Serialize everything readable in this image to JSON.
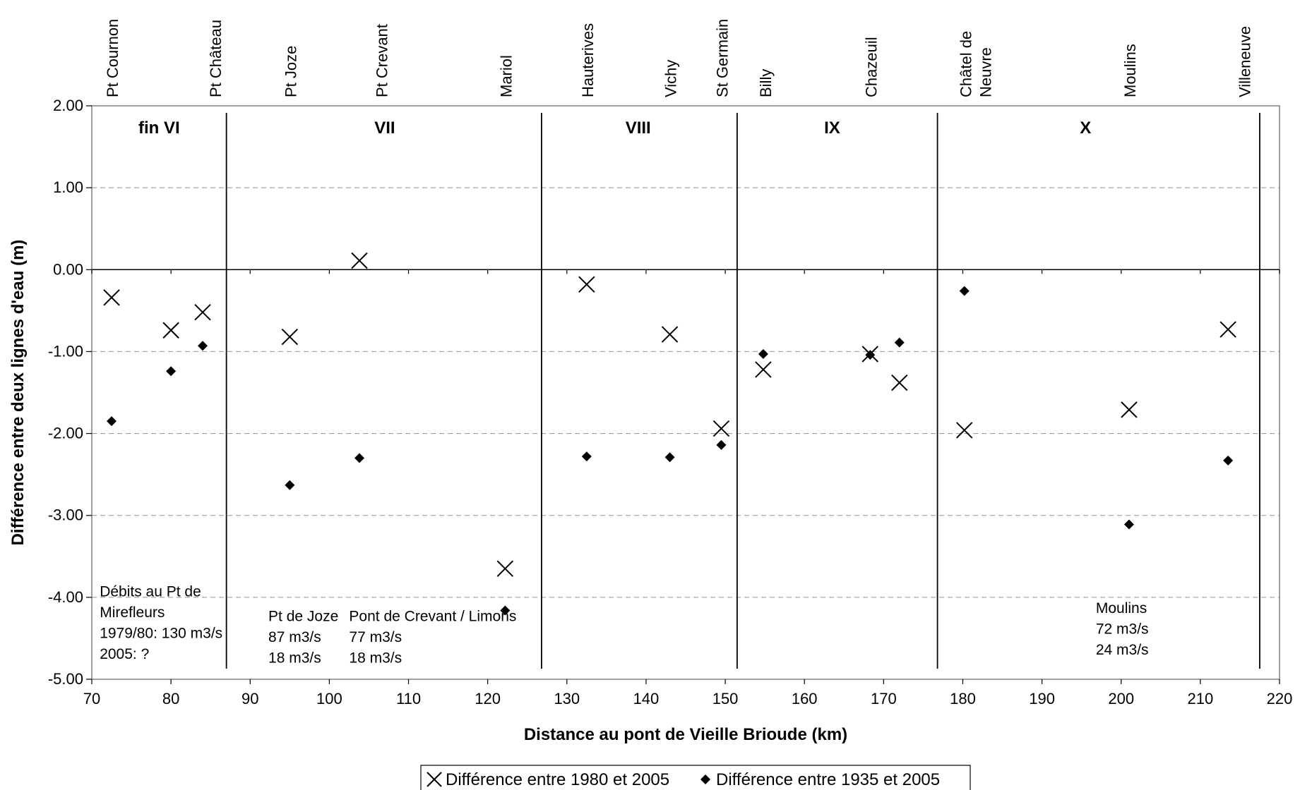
{
  "chart_data": {
    "type": "scatter",
    "xlabel": "Distance au pont de Vieille Brioude (km)",
    "ylabel": "Différence entre deux lignes d'eau (m)",
    "xlim": [
      70,
      220
    ],
    "ylim": [
      -5,
      2
    ],
    "x_ticks": [
      "70",
      "80",
      "90",
      "100",
      "110",
      "120",
      "130",
      "140",
      "150",
      "160",
      "170",
      "180",
      "190",
      "200",
      "210",
      "220"
    ],
    "y_ticks": [
      "2.00",
      "1.00",
      "0.00",
      "-1.00",
      "-2.00",
      "-3.00",
      "-4.00",
      "-5.00"
    ],
    "grid": "horizontal dashed",
    "legend_position": "bottom",
    "series": [
      {
        "name": "Différence entre 1980 et 2005",
        "marker": "x",
        "color": "#000000",
        "points": [
          {
            "x": 72.5,
            "y": -0.34
          },
          {
            "x": 80,
            "y": -0.74
          },
          {
            "x": 84,
            "y": -0.52
          },
          {
            "x": 95,
            "y": -0.82
          },
          {
            "x": 103.8,
            "y": 0.11
          },
          {
            "x": 122.2,
            "y": -3.65
          },
          {
            "x": 132.5,
            "y": -0.18
          },
          {
            "x": 143,
            "y": -0.79
          },
          {
            "x": 149.5,
            "y": -1.94
          },
          {
            "x": 154.8,
            "y": -1.22
          },
          {
            "x": 168.3,
            "y": -1.03
          },
          {
            "x": 172,
            "y": -1.38
          },
          {
            "x": 180.2,
            "y": -1.96
          },
          {
            "x": 201,
            "y": -1.71
          },
          {
            "x": 213.5,
            "y": -0.73
          }
        ]
      },
      {
        "name": "Différence entre 1935 et 2005",
        "marker": "diamond",
        "color": "#000000",
        "points": [
          {
            "x": 72.5,
            "y": -1.85
          },
          {
            "x": 80,
            "y": -1.24
          },
          {
            "x": 84,
            "y": -0.93
          },
          {
            "x": 95,
            "y": -2.63
          },
          {
            "x": 103.8,
            "y": -2.3
          },
          {
            "x": 122.2,
            "y": -4.16
          },
          {
            "x": 132.5,
            "y": -2.28
          },
          {
            "x": 143,
            "y": -2.29
          },
          {
            "x": 149.5,
            "y": -2.14
          },
          {
            "x": 154.8,
            "y": -1.03
          },
          {
            "x": 168.3,
            "y": -1.04
          },
          {
            "x": 172,
            "y": -0.89
          },
          {
            "x": 180.2,
            "y": -0.26
          },
          {
            "x": 201,
            "y": -3.11
          },
          {
            "x": 213.5,
            "y": -2.33
          }
        ]
      }
    ],
    "section_dividers": [
      87,
      126.8,
      151.5,
      176.8,
      217.5
    ],
    "sections": [
      {
        "label": "fin VI",
        "x": 78.5
      },
      {
        "label": "VII",
        "x": 107
      },
      {
        "label": "VIII",
        "x": 139
      },
      {
        "label": "IX",
        "x": 163.5
      },
      {
        "label": "X",
        "x": 195.5
      }
    ],
    "places": [
      {
        "lines": [
          "Pt Cournon"
        ],
        "x": 72.5
      },
      {
        "lines": [
          "Pt Château"
        ],
        "x": 85.5
      },
      {
        "lines": [
          "Pt Joze"
        ],
        "x": 95
      },
      {
        "lines": [
          "Pt Crevant"
        ],
        "x": 106.5
      },
      {
        "lines": [
          "Mariol"
        ],
        "x": 122.2
      },
      {
        "lines": [
          "Hauterives"
        ],
        "x": 132.5
      },
      {
        "lines": [
          "Vichy"
        ],
        "x": 143
      },
      {
        "lines": [
          "St Germain"
        ],
        "x": 149.5
      },
      {
        "lines": [
          "Billy"
        ],
        "x": 155
      },
      {
        "lines": [
          "Chazeuil"
        ],
        "x": 168.3
      },
      {
        "lines": [
          "Châtel de",
          "Neuvre"
        ],
        "x": 181.5
      },
      {
        "lines": [
          "Moulins"
        ],
        "x": 201
      },
      {
        "lines": [
          "Villeneuve"
        ],
        "x": 215.5
      }
    ],
    "annotations": [
      {
        "x": 71,
        "y": -3.99,
        "lines": [
          "Débits au Pt de",
          "Mirefleurs",
          "1979/80: 130 m3/s",
          "2005:    ?"
        ]
      },
      {
        "x": 92.3,
        "y": -4.29,
        "lines": [
          "Pt de Joze",
          "87 m3/s",
          "18 m3/s"
        ]
      },
      {
        "x": 102.5,
        "y": -4.29,
        "lines": [
          "Pont de Crevant / Limons",
          "77 m3/s",
          "18 m3/s"
        ]
      },
      {
        "x": 196.8,
        "y": -4.19,
        "lines": [
          "Moulins",
          "72 m3/s",
          "24 m3/s"
        ]
      }
    ]
  }
}
